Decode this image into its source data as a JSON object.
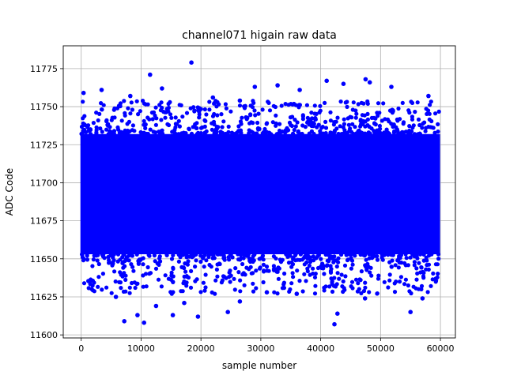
{
  "chart_data": {
    "type": "scatter",
    "title": "channel071 higain raw data",
    "xlabel": "sample number",
    "ylabel": "ADC Code",
    "xlim": [
      -3000,
      62500
    ],
    "ylim": [
      11598,
      11790
    ],
    "xticks": [
      0,
      10000,
      20000,
      30000,
      40000,
      50000,
      60000
    ],
    "xtick_labels": [
      "0",
      "10000",
      "20000",
      "30000",
      "40000",
      "50000",
      "60000"
    ],
    "yticks": [
      11600,
      11625,
      11650,
      11675,
      11700,
      11725,
      11750,
      11775
    ],
    "ytick_labels": [
      "11600",
      "11625",
      "11650",
      "11675",
      "11700",
      "11725",
      "11750",
      "11775"
    ],
    "grid": true,
    "marker_color": "#0000ff",
    "sample_range": [
      0,
      59800
    ],
    "dense_band": [
      11653,
      11732
    ],
    "outliers": [
      {
        "x": 18400,
        "y": 11779
      },
      {
        "x": 11500,
        "y": 11771
      },
      {
        "x": 13500,
        "y": 11762
      },
      {
        "x": 400,
        "y": 11759
      },
      {
        "x": 29000,
        "y": 11763
      },
      {
        "x": 32800,
        "y": 11764
      },
      {
        "x": 41000,
        "y": 11767
      },
      {
        "x": 43800,
        "y": 11765
      },
      {
        "x": 47500,
        "y": 11768
      },
      {
        "x": 48200,
        "y": 11766
      },
      {
        "x": 51800,
        "y": 11763
      },
      {
        "x": 58000,
        "y": 11757
      },
      {
        "x": 36500,
        "y": 11761
      },
      {
        "x": 3400,
        "y": 11761
      },
      {
        "x": 8200,
        "y": 11757
      },
      {
        "x": 22000,
        "y": 11756
      },
      {
        "x": 26500,
        "y": 11754
      },
      {
        "x": 42300,
        "y": 11607
      },
      {
        "x": 10500,
        "y": 11608
      },
      {
        "x": 7200,
        "y": 11609
      },
      {
        "x": 9400,
        "y": 11613
      },
      {
        "x": 15300,
        "y": 11613
      },
      {
        "x": 19500,
        "y": 11612
      },
      {
        "x": 17200,
        "y": 11621
      },
      {
        "x": 12500,
        "y": 11619
      },
      {
        "x": 24500,
        "y": 11615
      },
      {
        "x": 26500,
        "y": 11622
      },
      {
        "x": 42800,
        "y": 11614
      },
      {
        "x": 55000,
        "y": 11615
      },
      {
        "x": 5800,
        "y": 11625
      },
      {
        "x": 36000,
        "y": 11627
      },
      {
        "x": 31000,
        "y": 11628
      },
      {
        "x": 47400,
        "y": 11624
      },
      {
        "x": 57000,
        "y": 11624
      }
    ]
  }
}
